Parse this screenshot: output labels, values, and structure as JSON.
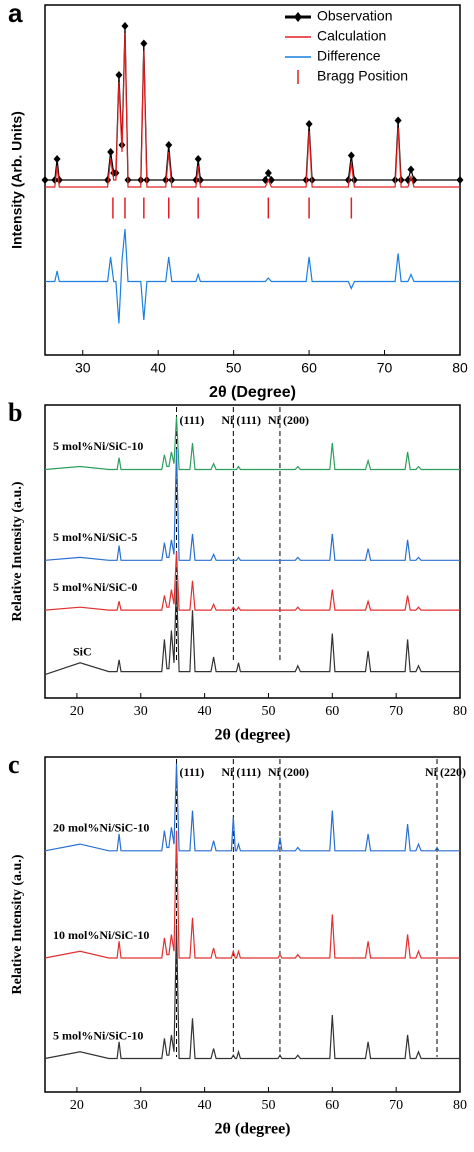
{
  "chart_data": [
    {
      "type": "line",
      "panel": "a",
      "xlabel": "2θ (Degree)",
      "ylabel": "Intensity (Arb. Units)",
      "xlim": [
        25,
        80
      ],
      "xticks": [
        30,
        40,
        50,
        60,
        70,
        80
      ],
      "ylim": [
        0,
        100
      ],
      "legend": "upper right",
      "x": [
        25,
        26.3,
        26.6,
        26.9,
        33.3,
        33.7,
        34.1,
        34.4,
        34.8,
        35.2,
        35.6,
        36.0,
        37.7,
        38.1,
        38.5,
        41.0,
        41.4,
        41.8,
        45.0,
        45.3,
        45.6,
        54.2,
        54.6,
        55.0,
        59.6,
        60.0,
        60.4,
        65.2,
        65.6,
        66.0,
        71.4,
        71.8,
        72.2,
        73.1,
        73.5,
        73.9,
        80
      ],
      "series": [
        {
          "name": "Observation",
          "color": "#000000",
          "marker": "diamond",
          "values": [
            50,
            50,
            56,
            50,
            50,
            58,
            52,
            52,
            80,
            60,
            94,
            50,
            50,
            89,
            50,
            50,
            60,
            50,
            50,
            56,
            50,
            50,
            52,
            50,
            50,
            66,
            50,
            50,
            57,
            50,
            50,
            67,
            50,
            50,
            53,
            50,
            50
          ]
        },
        {
          "name": "Calculation",
          "color": "#e02020",
          "values": [
            48,
            48,
            54,
            48,
            48,
            56,
            50,
            50,
            78,
            58,
            92,
            48,
            48,
            87,
            48,
            48,
            58,
            48,
            48,
            54,
            48,
            48,
            50,
            48,
            48,
            64,
            48,
            48,
            55,
            48,
            48,
            65,
            48,
            48,
            51,
            48,
            48
          ]
        },
        {
          "name": "Difference",
          "color": "#1a7fe0",
          "values": [
            21,
            21,
            24,
            21,
            21,
            28,
            21,
            21,
            9,
            27,
            36,
            21,
            21,
            10,
            21,
            21,
            28,
            21,
            21,
            23,
            21,
            21,
            22,
            21,
            21,
            28,
            21,
            21,
            19,
            21,
            21,
            29,
            21,
            21,
            23,
            21,
            21
          ]
        }
      ],
      "bragg": {
        "name": "Bragg Position",
        "color": "#e02020",
        "values": [
          34.0,
          35.6,
          38.1,
          41.4,
          45.3,
          54.6,
          60.0,
          65.6
        ]
      }
    },
    {
      "type": "line",
      "panel": "b",
      "xlabel": "2θ (degree)",
      "ylabel": "Relative Intensity (a.u.)",
      "xlim": [
        15,
        80
      ],
      "xticks": [
        20,
        30,
        40,
        50,
        60,
        70,
        80
      ],
      "ylim": [
        0,
        100
      ],
      "legend": "inline",
      "x": [
        15,
        20.5,
        25,
        26.3,
        26.6,
        26.9,
        33.3,
        33.7,
        34.1,
        34.4,
        34.8,
        35.2,
        35.6,
        36.0,
        37.7,
        38.1,
        38.5,
        41.0,
        41.4,
        41.8,
        44.2,
        44.5,
        44.8,
        45.0,
        45.3,
        45.6,
        51.5,
        51.8,
        52.1,
        54.2,
        54.6,
        55.0,
        59.6,
        60.0,
        60.4,
        65.2,
        65.6,
        66.0,
        71.4,
        71.8,
        72.2,
        73.1,
        73.5,
        73.9,
        76.1,
        76.4,
        76.7,
        80
      ],
      "series": [
        {
          "name": "SiC",
          "color": "#333333",
          "values": [
            8,
            12,
            9,
            9,
            13,
            9,
            9,
            20,
            10,
            10,
            23,
            12,
            40,
            9,
            9,
            30,
            9,
            9,
            14,
            9,
            9,
            9,
            9,
            9,
            12,
            9,
            9,
            9,
            9,
            9,
            11,
            9,
            9,
            22,
            9,
            9,
            16,
            9,
            9,
            20,
            9,
            9,
            11,
            9,
            9,
            9,
            9,
            9
          ]
        },
        {
          "name": "5 mol%Ni/SiC-0",
          "color": "#e03030",
          "values": [
            30,
            31,
            30,
            30,
            33,
            30,
            30,
            35,
            31,
            31,
            37,
            32,
            50,
            30,
            30,
            40,
            30,
            30,
            32,
            30,
            30,
            31,
            30,
            30,
            31,
            30,
            30,
            30,
            30,
            30,
            31,
            30,
            30,
            37,
            30,
            30,
            33,
            30,
            30,
            35,
            30,
            30,
            31,
            30,
            30,
            30,
            30,
            30
          ]
        },
        {
          "name": "5 mol%Ni/SiC-5",
          "color": "#2a6fd0",
          "values": [
            47,
            48,
            47,
            47,
            52,
            47,
            47,
            53,
            48,
            48,
            54,
            49,
            85,
            47,
            47,
            56,
            47,
            47,
            49,
            47,
            47,
            47,
            47,
            47,
            48,
            47,
            47,
            47,
            47,
            47,
            48,
            47,
            47,
            56,
            47,
            47,
            51,
            47,
            47,
            54,
            47,
            47,
            48,
            47,
            47,
            47,
            47,
            47
          ]
        },
        {
          "name": "5 mol%Ni/SiC-10",
          "color": "#2e9e5e",
          "values": [
            78,
            79,
            78,
            78,
            82,
            78,
            78,
            83,
            79,
            79,
            84,
            80,
            96,
            78,
            78,
            87,
            78,
            78,
            80,
            78,
            78,
            78,
            78,
            78,
            79,
            78,
            78,
            78,
            78,
            78,
            79,
            78,
            78,
            87,
            78,
            78,
            81,
            78,
            78,
            84,
            78,
            78,
            79,
            78,
            78,
            78,
            78,
            78
          ]
        }
      ],
      "reference_lines": [
        {
          "x": 35.6,
          "label": "(111)"
        },
        {
          "x": 44.5,
          "label": "Ni (111)"
        },
        {
          "x": 51.8,
          "label": "Ni (200)"
        }
      ]
    },
    {
      "type": "line",
      "panel": "c",
      "xlabel": "2θ (degree)",
      "ylabel": "Relative Intensity (a.u.)",
      "xlim": [
        15,
        80
      ],
      "xticks": [
        20,
        30,
        40,
        50,
        60,
        70,
        80
      ],
      "ylim": [
        0,
        100
      ],
      "legend": "inline",
      "x": [
        15,
        20.5,
        25,
        26.3,
        26.6,
        26.9,
        33.3,
        33.7,
        34.1,
        34.4,
        34.8,
        35.2,
        35.6,
        36.0,
        37.7,
        38.1,
        38.5,
        41.0,
        41.4,
        41.8,
        44.2,
        44.5,
        44.8,
        45.0,
        45.3,
        45.6,
        51.5,
        51.8,
        52.1,
        54.2,
        54.6,
        55.0,
        59.6,
        60.0,
        60.4,
        65.2,
        65.6,
        66.0,
        71.4,
        71.8,
        72.2,
        73.1,
        73.5,
        73.9,
        76.1,
        76.4,
        76.7,
        80
      ],
      "series": [
        {
          "name": "5 mol%Ni/SiC-10",
          "color": "#333333",
          "values": [
            10,
            12,
            10,
            10,
            15,
            10,
            10,
            16,
            11,
            11,
            17,
            12,
            50,
            10,
            10,
            22,
            10,
            10,
            13,
            10,
            10,
            11,
            10,
            10,
            12,
            10,
            10,
            11,
            10,
            10,
            11,
            10,
            10,
            23,
            10,
            10,
            15,
            10,
            10,
            17,
            10,
            10,
            12,
            10,
            10,
            10,
            10,
            10
          ]
        },
        {
          "name": "10 mol%Ni/SiC-10",
          "color": "#e03030",
          "values": [
            40,
            42,
            40,
            40,
            45,
            40,
            40,
            46,
            41,
            41,
            47,
            42,
            78,
            40,
            40,
            52,
            40,
            40,
            43,
            40,
            40,
            42,
            40,
            40,
            42,
            40,
            40,
            41,
            40,
            40,
            41,
            40,
            40,
            53,
            40,
            40,
            45,
            40,
            40,
            47,
            40,
            40,
            42,
            40,
            40,
            40,
            40,
            40
          ]
        },
        {
          "name": "20 mol%Ni/SiC-10",
          "color": "#2a6fd0",
          "values": [
            72,
            74,
            72,
            72,
            77,
            72,
            72,
            78,
            73,
            73,
            79,
            74,
            98,
            72,
            72,
            84,
            72,
            72,
            75,
            72,
            72,
            82,
            72,
            72,
            74,
            72,
            72,
            76,
            72,
            72,
            73,
            72,
            72,
            84,
            72,
            72,
            77,
            72,
            72,
            80,
            72,
            72,
            74,
            72,
            72,
            73,
            72,
            72
          ]
        }
      ],
      "reference_lines": [
        {
          "x": 35.6,
          "label": "(111)"
        },
        {
          "x": 44.5,
          "label": "Ni (111)"
        },
        {
          "x": 51.8,
          "label": "Ni (200)"
        },
        {
          "x": 76.4,
          "label": "Ni (220)"
        }
      ]
    }
  ]
}
